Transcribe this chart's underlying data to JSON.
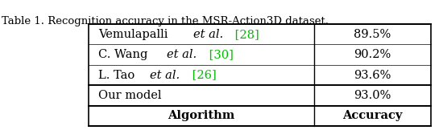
{
  "title": "Table 1. Recognition accuracy in the MSR-Action3D dataset.",
  "bg_color": "#ffffff",
  "ref_color": "#00bb00",
  "font_size": 10.5,
  "title_font_size": 9.5,
  "rows": [
    [
      [
        [
          "Our model",
          "normal",
          "black"
        ]
      ],
      "93.0%"
    ],
    [
      [
        [
          "L. Tao ",
          "normal",
          "black"
        ],
        [
          "et al.",
          "italic",
          "black"
        ],
        [
          " [26]",
          "normal",
          "#00bb00"
        ]
      ],
      "93.6%"
    ],
    [
      [
        [
          "C. Wang ",
          "normal",
          "black"
        ],
        [
          "et al.",
          "italic",
          "black"
        ],
        [
          " [30]",
          "normal",
          "#00bb00"
        ]
      ],
      "90.2%"
    ],
    [
      [
        [
          "Vemulapalli ",
          "normal",
          "black"
        ],
        [
          "et al.",
          "italic",
          "black"
        ],
        [
          " [28]",
          "normal",
          "#00bb00"
        ]
      ],
      "89.5%"
    ]
  ]
}
